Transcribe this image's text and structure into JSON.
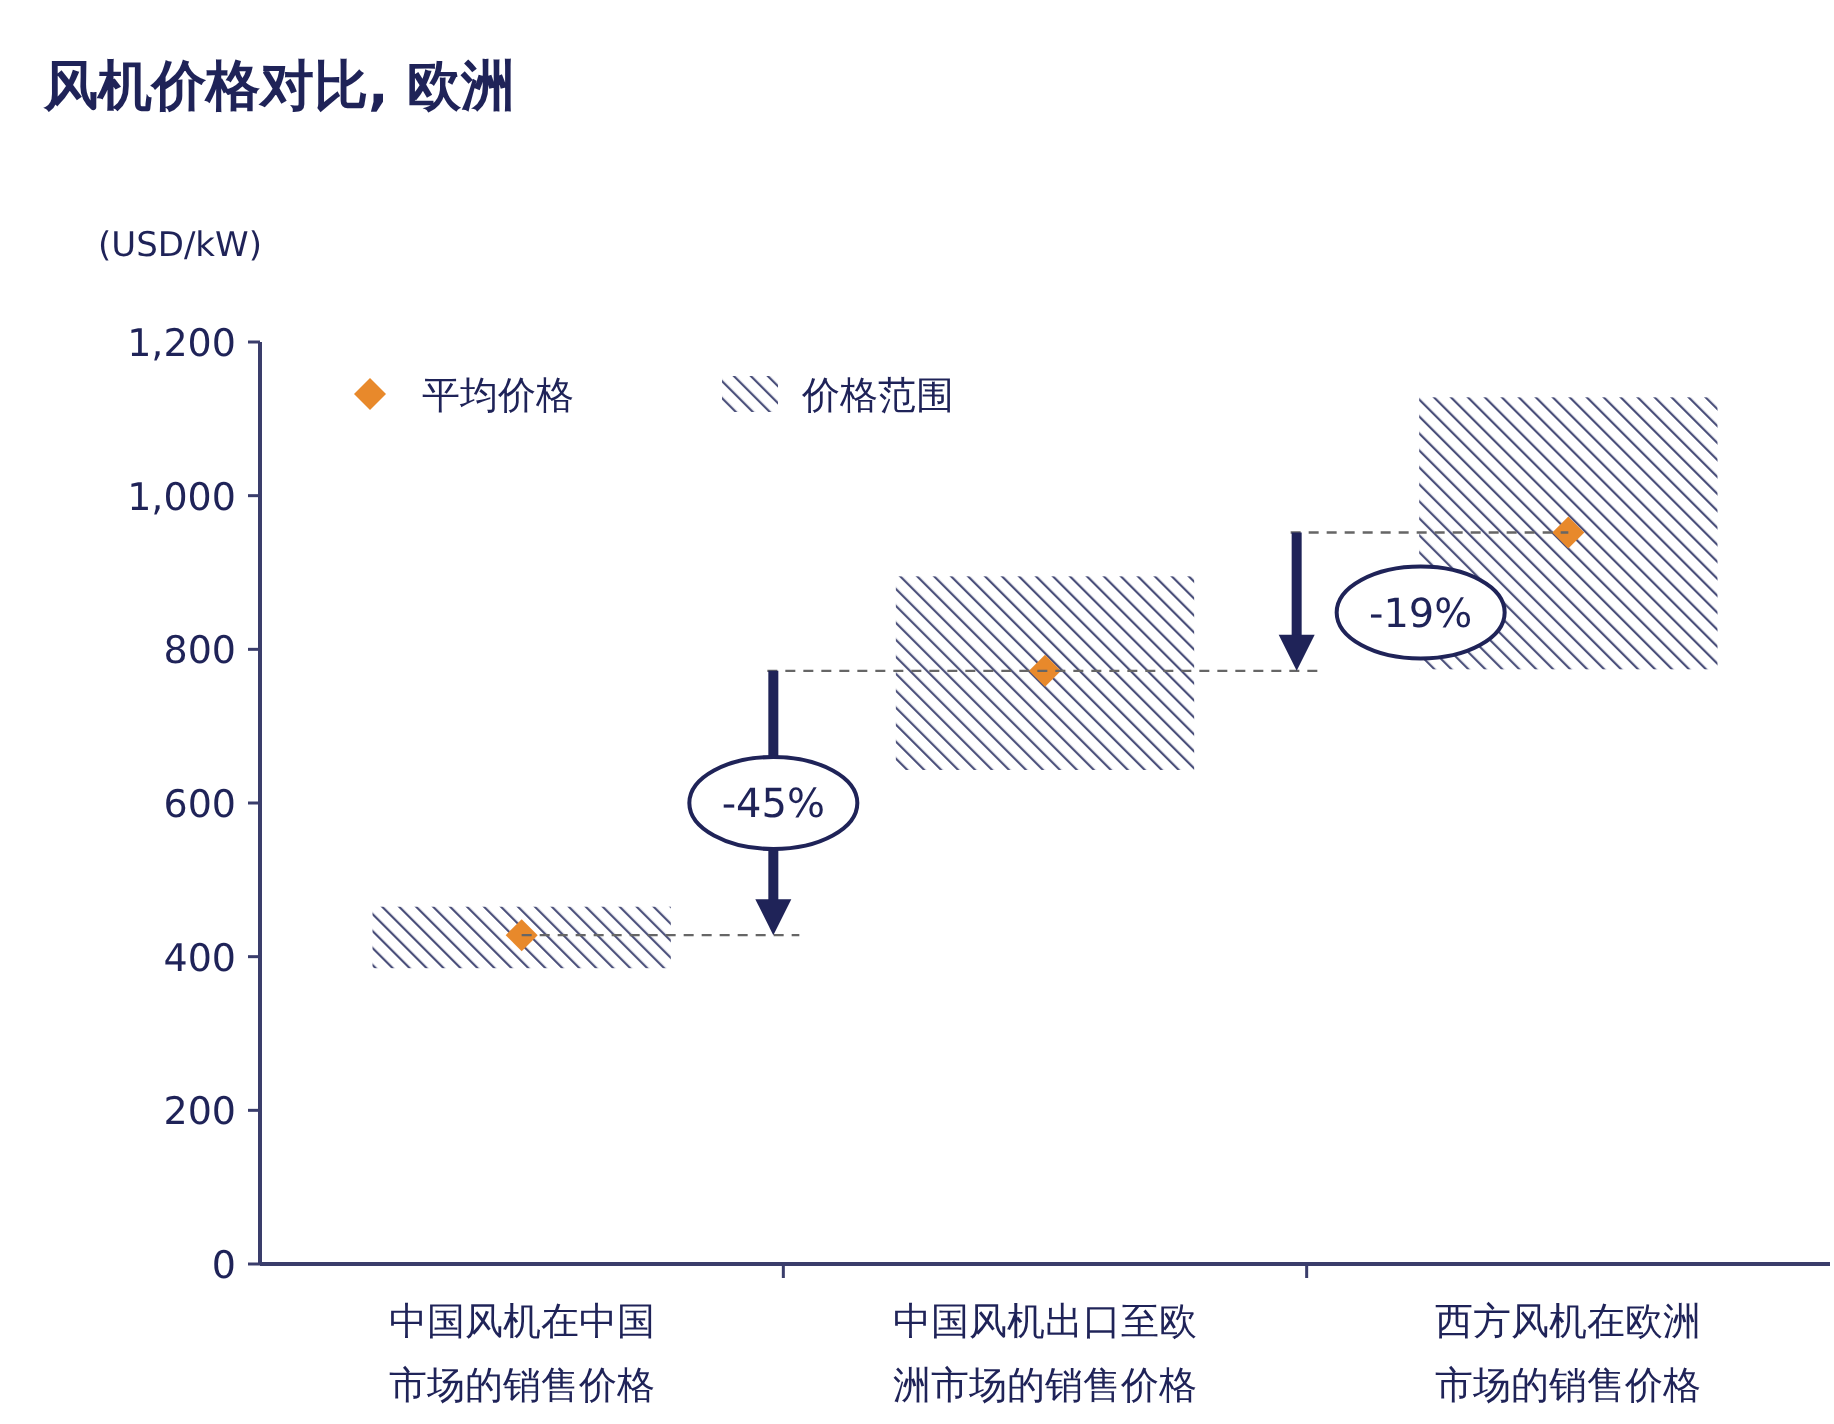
{
  "chart_data": {
    "type": "bar",
    "title": "风机价格对比, 欧洲",
    "ylabel": "(USD/kW)",
    "categories": [
      "中国风机在中国市场的销售价格",
      "中国风机出口至欧洲市场的销售价格",
      "西方风机在欧洲市场的销售价格"
    ],
    "series": [
      {
        "name": "平均价格",
        "type": "scatter",
        "marker": "diamond",
        "color": "#e8892b",
        "x": [
          "中国风机在中国市场的销售价格",
          "中国风机出口至欧洲市场的销售价格",
          "西方风机在欧洲市场的销售价格"
        ],
        "values": [
          428,
          772,
          952
        ]
      },
      {
        "name": "价格范围",
        "color": "#4a4f7a",
        "base": [
          385,
          643,
          774
        ],
        "values": [
          80,
          252,
          354
        ]
      }
    ],
    "ylim": [
      0,
      1200
    ],
    "yticks": [
      0,
      200,
      400,
      600,
      800,
      {
        "value": 1000,
        "label": "1,000"
      },
      {
        "value": 1200,
        "label": "1,200"
      }
    ],
    "annotations": [
      "-45%",
      "-19%"
    ],
    "legend": "top left",
    "grid": false
  }
}
